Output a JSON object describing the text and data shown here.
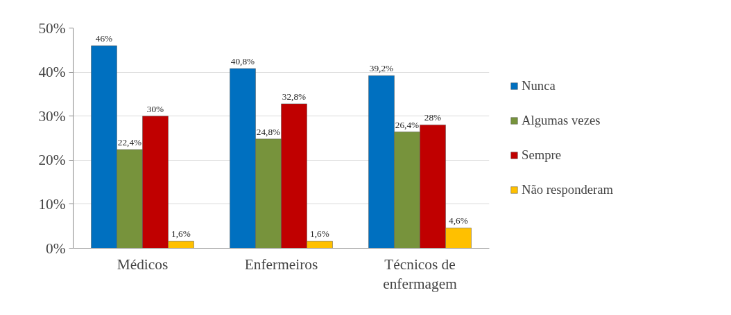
{
  "chart_data": {
    "type": "bar",
    "categories": [
      "Médicos",
      "Enfermeiros",
      "Técnicos de enfermagem"
    ],
    "series": [
      {
        "name": "Nunca",
        "color": "#0070c0",
        "values": [
          46,
          40.8,
          39.2
        ],
        "value_labels": [
          "46%",
          "40,8%",
          "39,2%"
        ]
      },
      {
        "name": "Algumas vezes",
        "color": "#77933c",
        "values": [
          22.4,
          24.8,
          26.4
        ],
        "value_labels": [
          "22,4%",
          "24,8%",
          "26,4%"
        ]
      },
      {
        "name": "Sempre",
        "color": "#c00000",
        "values": [
          30,
          32.8,
          28
        ],
        "value_labels": [
          "30%",
          "32,8%",
          "28%"
        ]
      },
      {
        "name": "Não responderam",
        "color": "#ffc000",
        "values": [
          1.6,
          1.6,
          4.6
        ],
        "value_labels": [
          "1,6%",
          "1,6%",
          "4,6%"
        ]
      }
    ],
    "ylim": [
      0,
      50
    ],
    "yticks": [
      {
        "value": 0,
        "label": "0%"
      },
      {
        "value": 10,
        "label": "10%"
      },
      {
        "value": 20,
        "label": "20%"
      },
      {
        "value": 30,
        "label": "30%"
      },
      {
        "value": 40,
        "label": "40%"
      },
      {
        "value": 50,
        "label": "50%"
      }
    ],
    "grid": "y",
    "legend": "right"
  }
}
